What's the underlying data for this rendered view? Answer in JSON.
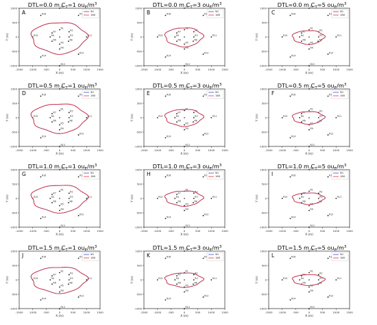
{
  "chart_data": {
    "type": "line",
    "layout": "4 rows x 3 columns",
    "grid": false,
    "legend_placement": "top-right",
    "series_colors": {
      "90": "#3a4fd8",
      "180": "#e8302e"
    },
    "xlabel": "X (m)",
    "ylabel": "Y (m)",
    "xlim": [
      -1500,
      1500
    ],
    "ylim": [
      -1000,
      1000
    ],
    "xticks": [
      "-1500",
      "-1000",
      "-500",
      "0",
      "500",
      "1000",
      "1500"
    ],
    "yticks": [
      "1000",
      "500",
      "0",
      "-500",
      "-1000"
    ],
    "legend": [
      "90",
      "180"
    ],
    "receptors": [
      {
        "id": "R1",
        "x": 0,
        "y": 250
      },
      {
        "id": "R2",
        "x": 350,
        "y": 180
      },
      {
        "id": "R3",
        "x": 350,
        "y": 0
      },
      {
        "id": "R4",
        "x": -350,
        "y": 0
      },
      {
        "id": "R5",
        "x": 0,
        "y": -250
      },
      {
        "id": "R6",
        "x": -280,
        "y": -150
      },
      {
        "id": "R7",
        "x": -280,
        "y": 140
      },
      {
        "id": "R8",
        "x": 330,
        "y": -150
      },
      {
        "id": "R9",
        "x": 0,
        "y": -420
      },
      {
        "id": "R10",
        "x": 700,
        "y": 750
      },
      {
        "id": "R11",
        "x": 1000,
        "y": 0
      },
      {
        "id": "R12",
        "x": 700,
        "y": -600
      },
      {
        "id": "R13",
        "x": 0,
        "y": -1000
      },
      {
        "id": "R14",
        "x": -700,
        "y": -700
      },
      {
        "id": "R15",
        "x": -1000,
        "y": 0
      },
      {
        "id": "R16",
        "x": -700,
        "y": 750
      },
      {
        "id": "R0",
        "x": 0,
        "y": 1000
      }
    ],
    "panels": [
      {
        "letter": "A",
        "title": "DTL=0.0 m",
        "ct": "C",
        "ct_sub": "T",
        "ct_rest": "=1 ou",
        "ou_sub": "E",
        "unit": "/m",
        "unit_sup": "3",
        "contour": {
          "east": 1000,
          "north": 520,
          "west": -1050,
          "south": -570
        }
      },
      {
        "letter": "B",
        "title": "DTL=0.0 m",
        "ct": "C",
        "ct_sub": "T",
        "ct_rest": "=3 ou",
        "ou_sub": "E",
        "unit": "/m",
        "unit_sup": "3",
        "contour": {
          "east": 680,
          "north": 330,
          "west": -720,
          "south": -330
        }
      },
      {
        "letter": "C",
        "title": "DTL=0.0 m",
        "ct": "C",
        "ct_sub": "T",
        "ct_rest": "=5 ou",
        "ou_sub": "E",
        "unit": "/m",
        "unit_sup": "3",
        "contour": {
          "east": 560,
          "north": 230,
          "west": -620,
          "south": -250
        }
      },
      {
        "letter": "D",
        "title": "DTL=0.5 m",
        "ct": "C",
        "ct_sub": "T",
        "ct_rest": "=1 ou",
        "ou_sub": "E",
        "unit": "/m",
        "unit_sup": "3",
        "contour": {
          "east": 1000,
          "north": 500,
          "west": -1050,
          "south": -520
        }
      },
      {
        "letter": "E",
        "title": "DTL=0.5 m",
        "ct": "C",
        "ct_sub": "T",
        "ct_rest": "=3 ou",
        "ou_sub": "E",
        "unit": "/m",
        "unit_sup": "3",
        "contour": {
          "east": 680,
          "north": 300,
          "west": -720,
          "south": -290
        }
      },
      {
        "letter": "F",
        "title": "DTL=0.5 m",
        "ct": "C",
        "ct_sub": "T",
        "ct_rest": "=5 ou",
        "ou_sub": "E",
        "unit": "/m",
        "unit_sup": "3",
        "contour": {
          "east": 560,
          "north": 220,
          "west": -620,
          "south": -220
        }
      },
      {
        "letter": "G",
        "title": "DTL=1.0 m",
        "ct": "C",
        "ct_sub": "T",
        "ct_rest": "=1 ou",
        "ou_sub": "E",
        "unit": "/m",
        "unit_sup": "3",
        "contour": {
          "east": 1000,
          "north": 480,
          "west": -1050,
          "south": -480
        }
      },
      {
        "letter": "H",
        "title": "DTL=1.0 m",
        "ct": "C",
        "ct_sub": "T",
        "ct_rest": "=3 ou",
        "ou_sub": "E",
        "unit": "/m",
        "unit_sup": "3",
        "contour": {
          "east": 680,
          "north": 270,
          "west": -720,
          "south": -260
        }
      },
      {
        "letter": "I",
        "title": "DTL=1.0 m",
        "ct": "C",
        "ct_sub": "T",
        "ct_rest": "=5 ou",
        "ou_sub": "E",
        "unit": "/m",
        "unit_sup": "3",
        "contour": {
          "east": 560,
          "north": 200,
          "west": -620,
          "south": -200
        }
      },
      {
        "letter": "J",
        "title": "DTL=1.5 m",
        "ct": "C",
        "ct_sub": "T",
        "ct_rest": "=1 ou",
        "ou_sub": "E",
        "unit": "/m",
        "unit_sup": "3",
        "contour": {
          "east": 1000,
          "north": 460,
          "west": -1050,
          "south": -450
        }
      },
      {
        "letter": "K",
        "title": "DTL=1.5 m",
        "ct": "C",
        "ct_sub": "T",
        "ct_rest": "=3 ou",
        "ou_sub": "E",
        "unit": "/m",
        "unit_sup": "3",
        "contour": {
          "east": 680,
          "north": 250,
          "west": -720,
          "south": -250
        }
      },
      {
        "letter": "L",
        "title": "DTL=1.5 m",
        "ct": "C",
        "ct_sub": "T",
        "ct_rest": "=5 ou",
        "ou_sub": "E",
        "unit": "/m",
        "unit_sup": "3",
        "contour": {
          "east": 560,
          "north": 190,
          "west": -620,
          "south": -190
        }
      }
    ]
  }
}
